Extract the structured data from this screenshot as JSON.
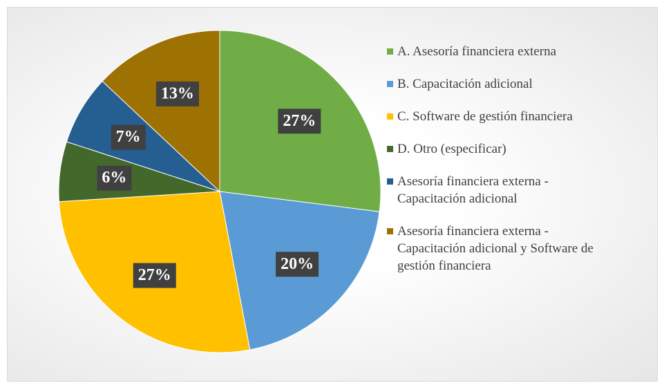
{
  "chart_data": {
    "type": "pie",
    "categories": [
      "A. Asesoría financiera externa",
      "B. Capacitación adicional",
      "C. Software de gestión financiera",
      "D. Otro (especificar)",
      "Asesoría financiera externa - Capacitación adicional",
      "Asesoría financiera externa - Capacitación adicional y Software de gestión financiera"
    ],
    "values": [
      27,
      20,
      27,
      6,
      7,
      13
    ],
    "value_labels": [
      "27%",
      "20%",
      "27%",
      "6%",
      "7%",
      "13%"
    ],
    "colors": [
      "#70ad47",
      "#5b9bd5",
      "#ffc000",
      "#43682b",
      "#255e91",
      "#9e7103"
    ],
    "legend": "right"
  }
}
